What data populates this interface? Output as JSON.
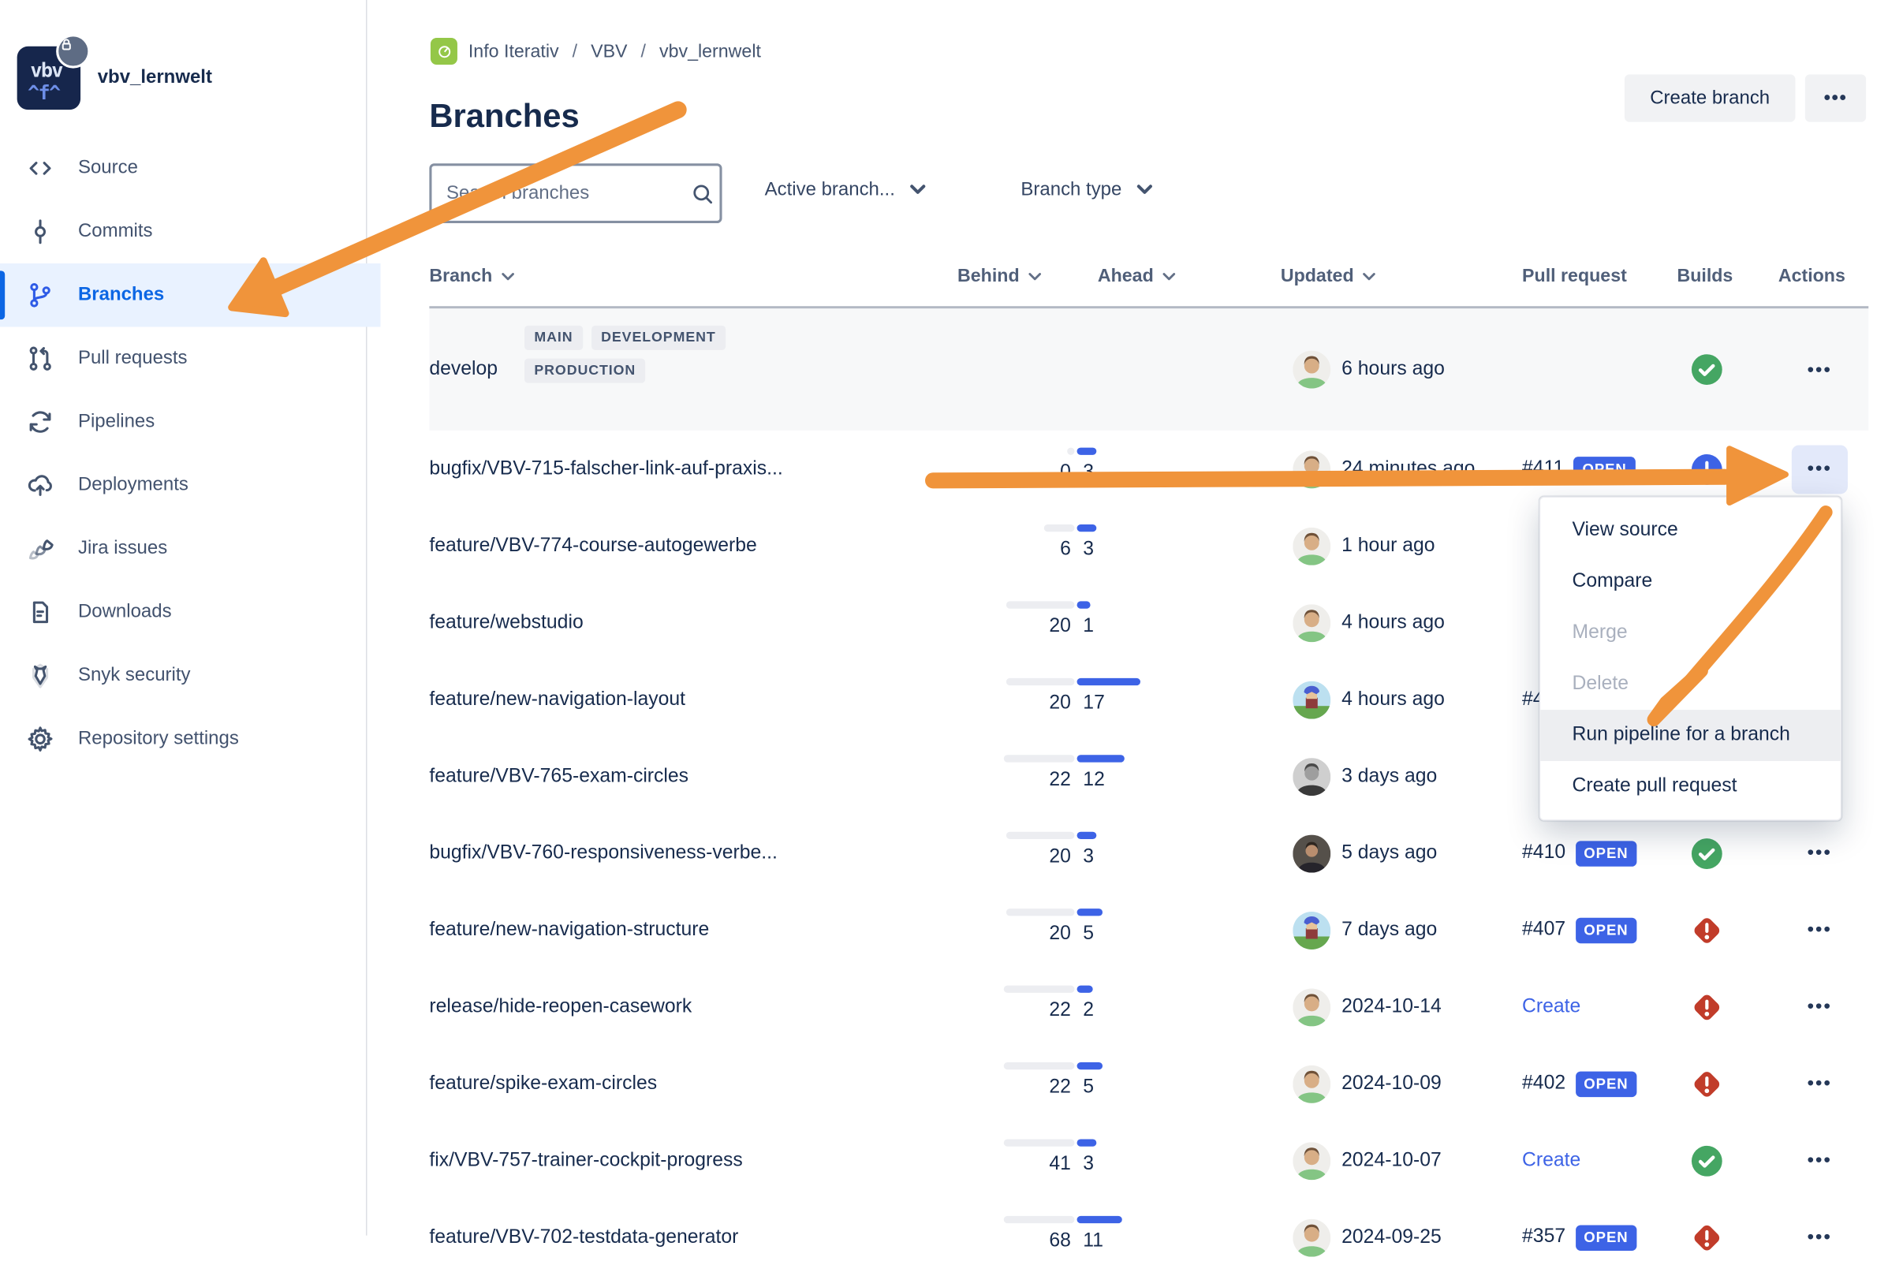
{
  "repo": {
    "name": "vbv_lernwelt"
  },
  "breadcrumb": {
    "items": [
      "Info Iterativ",
      "VBV",
      "vbv_lernwelt"
    ],
    "separator": "/"
  },
  "page": {
    "title": "Branches"
  },
  "header_actions": {
    "create_branch": "Create branch",
    "more": "•••"
  },
  "filters": {
    "search_placeholder": "Search branches",
    "active_branch_label": "Active branch...",
    "branch_type_label": "Branch type"
  },
  "sidebar": {
    "items": [
      {
        "label": "Source",
        "icon": "source-icon",
        "active": false
      },
      {
        "label": "Commits",
        "icon": "commits-icon",
        "active": false
      },
      {
        "label": "Branches",
        "icon": "branches-icon",
        "active": true
      },
      {
        "label": "Pull requests",
        "icon": "pull-requests-icon",
        "active": false
      },
      {
        "label": "Pipelines",
        "icon": "pipelines-icon",
        "active": false
      },
      {
        "label": "Deployments",
        "icon": "deployments-icon",
        "active": false
      },
      {
        "label": "Jira issues",
        "icon": "jira-icon",
        "active": false
      },
      {
        "label": "Downloads",
        "icon": "downloads-icon",
        "active": false
      },
      {
        "label": "Snyk security",
        "icon": "snyk-icon",
        "active": false
      },
      {
        "label": "Repository settings",
        "icon": "settings-icon",
        "active": false
      }
    ]
  },
  "table": {
    "dots_glyph": "•••",
    "columns": [
      {
        "label": "Branch",
        "sortable": true
      },
      {
        "label": "Behind",
        "sortable": true
      },
      {
        "label": "Ahead",
        "sortable": true
      },
      {
        "label": "Updated",
        "sortable": true
      },
      {
        "label": "Pull request",
        "sortable": false
      },
      {
        "label": "Builds",
        "sortable": false
      },
      {
        "label": "Actions",
        "sortable": false
      }
    ],
    "rows": [
      {
        "name": "develop",
        "badges": [
          "MAIN",
          "DEVELOPMENT",
          "PRODUCTION"
        ],
        "behind": null,
        "ahead": null,
        "updated": "6 hours ago",
        "avatar": "bearded-man",
        "pull_request": null,
        "pr_badge": null,
        "pr_is_link": false,
        "build": "success",
        "actions": "dots",
        "highlight_row": true
      },
      {
        "name": "bugfix/VBV-715-falscher-link-auf-praxis...",
        "badges": [],
        "behind": 0,
        "ahead": 3,
        "updated": "24 minutes ago",
        "avatar": "bearded-man",
        "pull_request": "#411",
        "pr_badge": "OPEN",
        "pr_is_link": false,
        "build": "in_progress",
        "actions": "dots-selected",
        "highlight_row": false
      },
      {
        "name": "feature/VBV-774-course-autogewerbe",
        "badges": [],
        "behind": 6,
        "ahead": 3,
        "updated": "1 hour ago",
        "avatar": "bearded-man",
        "pull_request": null,
        "pr_badge": null,
        "pr_is_link": false,
        "build": null,
        "actions": null,
        "highlight_row": false
      },
      {
        "name": "feature/webstudio",
        "badges": [],
        "behind": 20,
        "ahead": 1,
        "updated": "4 hours ago",
        "avatar": "bearded-man",
        "pull_request": null,
        "pr_badge": null,
        "pr_is_link": false,
        "build": null,
        "actions": null,
        "highlight_row": false
      },
      {
        "name": "feature/new-navigation-layout",
        "badges": [],
        "behind": 20,
        "ahead": 17,
        "updated": "4 hours ago",
        "avatar": "pixel-character",
        "pull_request": "#4",
        "pr_badge": null,
        "pr_is_link": false,
        "build": null,
        "actions": null,
        "highlight_row": false
      },
      {
        "name": "feature/VBV-765-exam-circles",
        "badges": [],
        "behind": 22,
        "ahead": 12,
        "updated": "3 days ago",
        "avatar": "bw-man",
        "pull_request": null,
        "pr_badge": null,
        "pr_is_link": false,
        "build": null,
        "actions": null,
        "highlight_row": false
      },
      {
        "name": "bugfix/VBV-760-responsiveness-verbe...",
        "badges": [],
        "behind": 20,
        "ahead": 3,
        "updated": "5 days ago",
        "avatar": "dark-man",
        "pull_request": "#410",
        "pr_badge": "OPEN",
        "pr_is_link": false,
        "build": "success",
        "actions": "dots",
        "highlight_row": false
      },
      {
        "name": "feature/new-navigation-structure",
        "badges": [],
        "behind": 20,
        "ahead": 5,
        "updated": "7 days ago",
        "avatar": "pixel-character",
        "pull_request": "#407",
        "pr_badge": "OPEN",
        "pr_is_link": false,
        "build": "failed",
        "actions": "dots",
        "highlight_row": false
      },
      {
        "name": "release/hide-reopen-casework",
        "badges": [],
        "behind": 22,
        "ahead": 2,
        "updated": "2024-10-14",
        "avatar": "bearded-man",
        "pull_request": "Create",
        "pr_badge": null,
        "pr_is_link": true,
        "build": "failed",
        "actions": "dots",
        "highlight_row": false
      },
      {
        "name": "feature/spike-exam-circles",
        "badges": [],
        "behind": 22,
        "ahead": 5,
        "updated": "2024-10-09",
        "avatar": "bearded-man",
        "pull_request": "#402",
        "pr_badge": "OPEN",
        "pr_is_link": false,
        "build": "failed",
        "actions": "dots",
        "highlight_row": false
      },
      {
        "name": "fix/VBV-757-trainer-cockpit-progress",
        "badges": [],
        "behind": 41,
        "ahead": 3,
        "updated": "2024-10-07",
        "avatar": "bearded-man",
        "pull_request": "Create",
        "pr_badge": null,
        "pr_is_link": true,
        "build": "success",
        "actions": "dots",
        "highlight_row": false
      },
      {
        "name": "feature/VBV-702-testdata-generator",
        "badges": [],
        "behind": 68,
        "ahead": 11,
        "updated": "2024-09-25",
        "avatar": "bearded-man",
        "pull_request": "#357",
        "pr_badge": "OPEN",
        "pr_is_link": false,
        "build": "failed",
        "actions": "dots",
        "highlight_row": false
      }
    ]
  },
  "context_menu": {
    "items": [
      {
        "label": "View source",
        "disabled": false,
        "highlighted": false
      },
      {
        "label": "Compare",
        "disabled": false,
        "highlighted": false
      },
      {
        "label": "Merge",
        "disabled": true,
        "highlighted": false
      },
      {
        "label": "Delete",
        "disabled": true,
        "highlighted": false
      },
      {
        "label": "Run pipeline for a branch",
        "disabled": false,
        "highlighted": true
      },
      {
        "label": "Create pull request",
        "disabled": false,
        "highlighted": false
      }
    ]
  },
  "colors": {
    "accent_blue": "#3D63E6",
    "active_blue": "#0C66E4",
    "success_green": "#45A663",
    "failed_red": "#C13C2A",
    "annotation_orange": "#F0943B",
    "navy": "#172B4D"
  }
}
